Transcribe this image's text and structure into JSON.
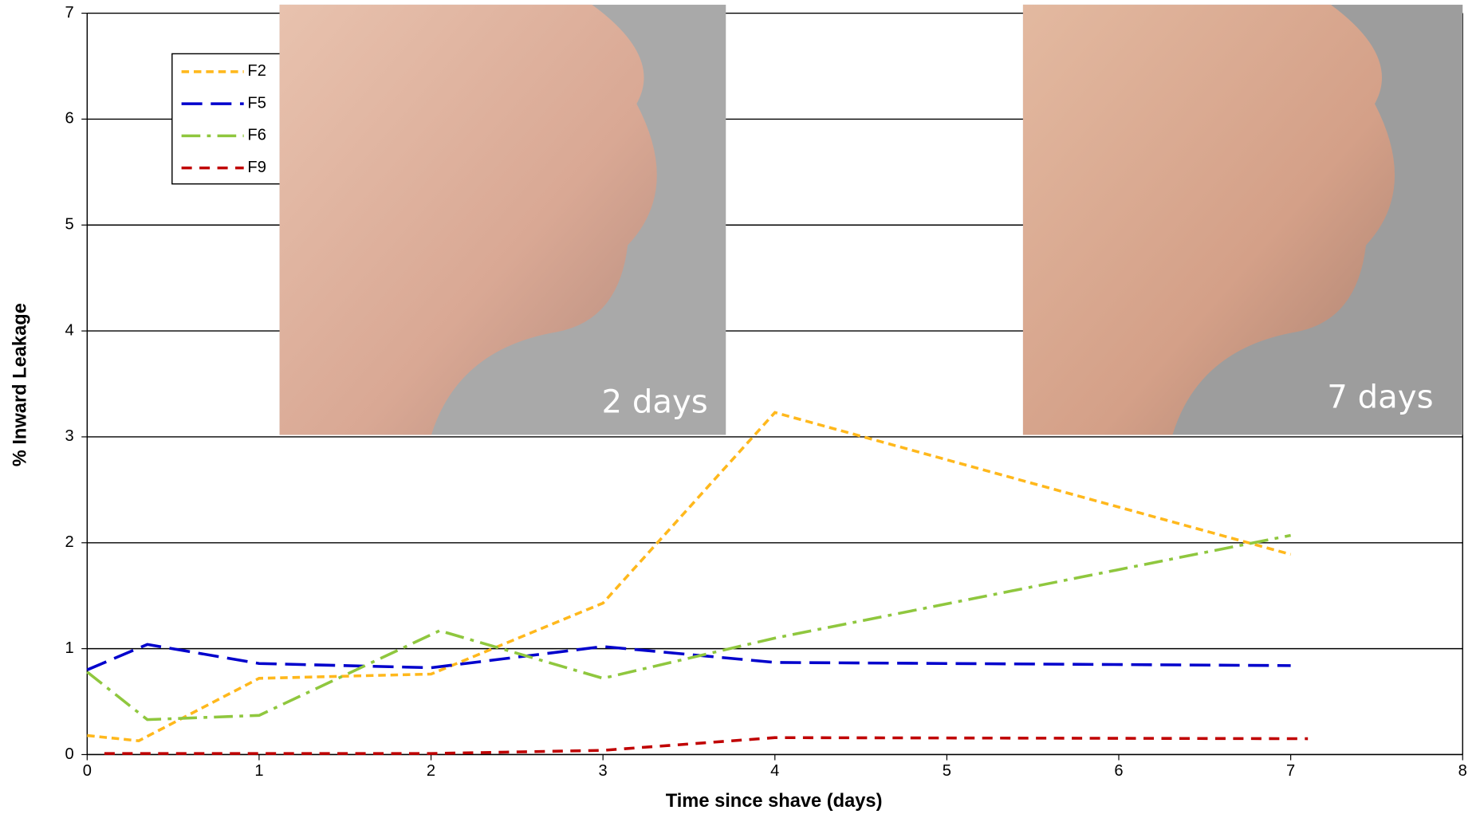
{
  "chart_data": {
    "type": "line",
    "xlabel": "Time since shave (days)",
    "ylabel": "% Inward Leakage",
    "xlim": [
      0,
      8
    ],
    "xticks": [
      0,
      1,
      2,
      3,
      4,
      5,
      6,
      7,
      8
    ],
    "ylim": [
      0,
      7
    ],
    "yticks": [
      0,
      1,
      2,
      3,
      4,
      5,
      6,
      7
    ],
    "grid": true,
    "legend": "upper left",
    "annotations": [
      "2 days",
      "7 days"
    ],
    "series": [
      {
        "name": "F2",
        "color": "#ffb81c",
        "x": [
          0,
          0.3,
          1,
          2,
          3,
          4,
          7
        ],
        "values": [
          0.18,
          0.13,
          0.72,
          0.76,
          1.43,
          3.23,
          1.89
        ]
      },
      {
        "name": "F5",
        "color": "#0000cc",
        "x": [
          0,
          0.35,
          1,
          2,
          3,
          4,
          7
        ],
        "values": [
          0.8,
          1.04,
          0.86,
          0.82,
          1.02,
          0.87,
          0.84
        ]
      },
      {
        "name": "F6",
        "color": "#8fc73e",
        "x": [
          0,
          0.35,
          1,
          2.05,
          3,
          4,
          7
        ],
        "values": [
          0.78,
          0.33,
          0.37,
          1.17,
          0.72,
          1.1,
          2.07
        ]
      },
      {
        "name": "F9",
        "color": "#c00000",
        "x": [
          0.1,
          1,
          2,
          3,
          4,
          7.1
        ],
        "values": [
          0.01,
          0.01,
          0.01,
          0.04,
          0.16,
          0.15
        ]
      }
    ]
  }
}
